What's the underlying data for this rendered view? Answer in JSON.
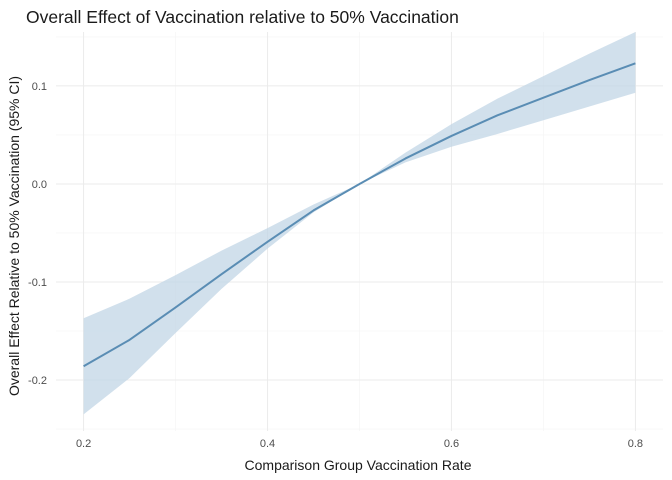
{
  "chart_data": {
    "type": "line",
    "title": "Overall Effect of Vaccination relative to 50% Vaccination",
    "xlabel": "Comparison Group Vaccination Rate",
    "ylabel": "Overall Effect Relative to 50% Vaccination (95% CI)",
    "xlim": [
      0.17,
      0.83
    ],
    "ylim": [
      -0.252,
      0.155
    ],
    "x_ticks": [
      0.2,
      0.4,
      0.6,
      0.8
    ],
    "x_tick_labels": [
      "0.2",
      "0.4",
      "0.6",
      "0.8"
    ],
    "y_ticks": [
      -0.2,
      -0.1,
      0.0,
      0.1
    ],
    "y_tick_labels": [
      "-0.2",
      "-0.1",
      "0.0",
      "0.1"
    ],
    "grid": true,
    "legend": "none",
    "series": [
      {
        "x": [
          0.2,
          0.25,
          0.3,
          0.35,
          0.4,
          0.45,
          0.5,
          0.55,
          0.6,
          0.65,
          0.7,
          0.75,
          0.8
        ],
        "y": [
          -0.186,
          -0.159,
          -0.126,
          -0.092,
          -0.059,
          -0.027,
          0.0,
          0.026,
          0.049,
          0.07,
          0.088,
          0.106,
          0.123
        ],
        "lower": [
          -0.235,
          -0.198,
          -0.152,
          -0.107,
          -0.066,
          -0.029,
          0.0,
          0.022,
          0.038,
          0.051,
          0.065,
          0.079,
          0.093
        ],
        "upper": [
          -0.137,
          -0.117,
          -0.093,
          -0.068,
          -0.045,
          -0.021,
          0.0,
          0.032,
          0.061,
          0.087,
          0.11,
          0.133,
          0.155
        ]
      }
    ],
    "colors": {
      "line": "#5a8db4",
      "band": "#c2d5e6",
      "grid": "#ebebeb",
      "background": "#ffffff"
    }
  }
}
